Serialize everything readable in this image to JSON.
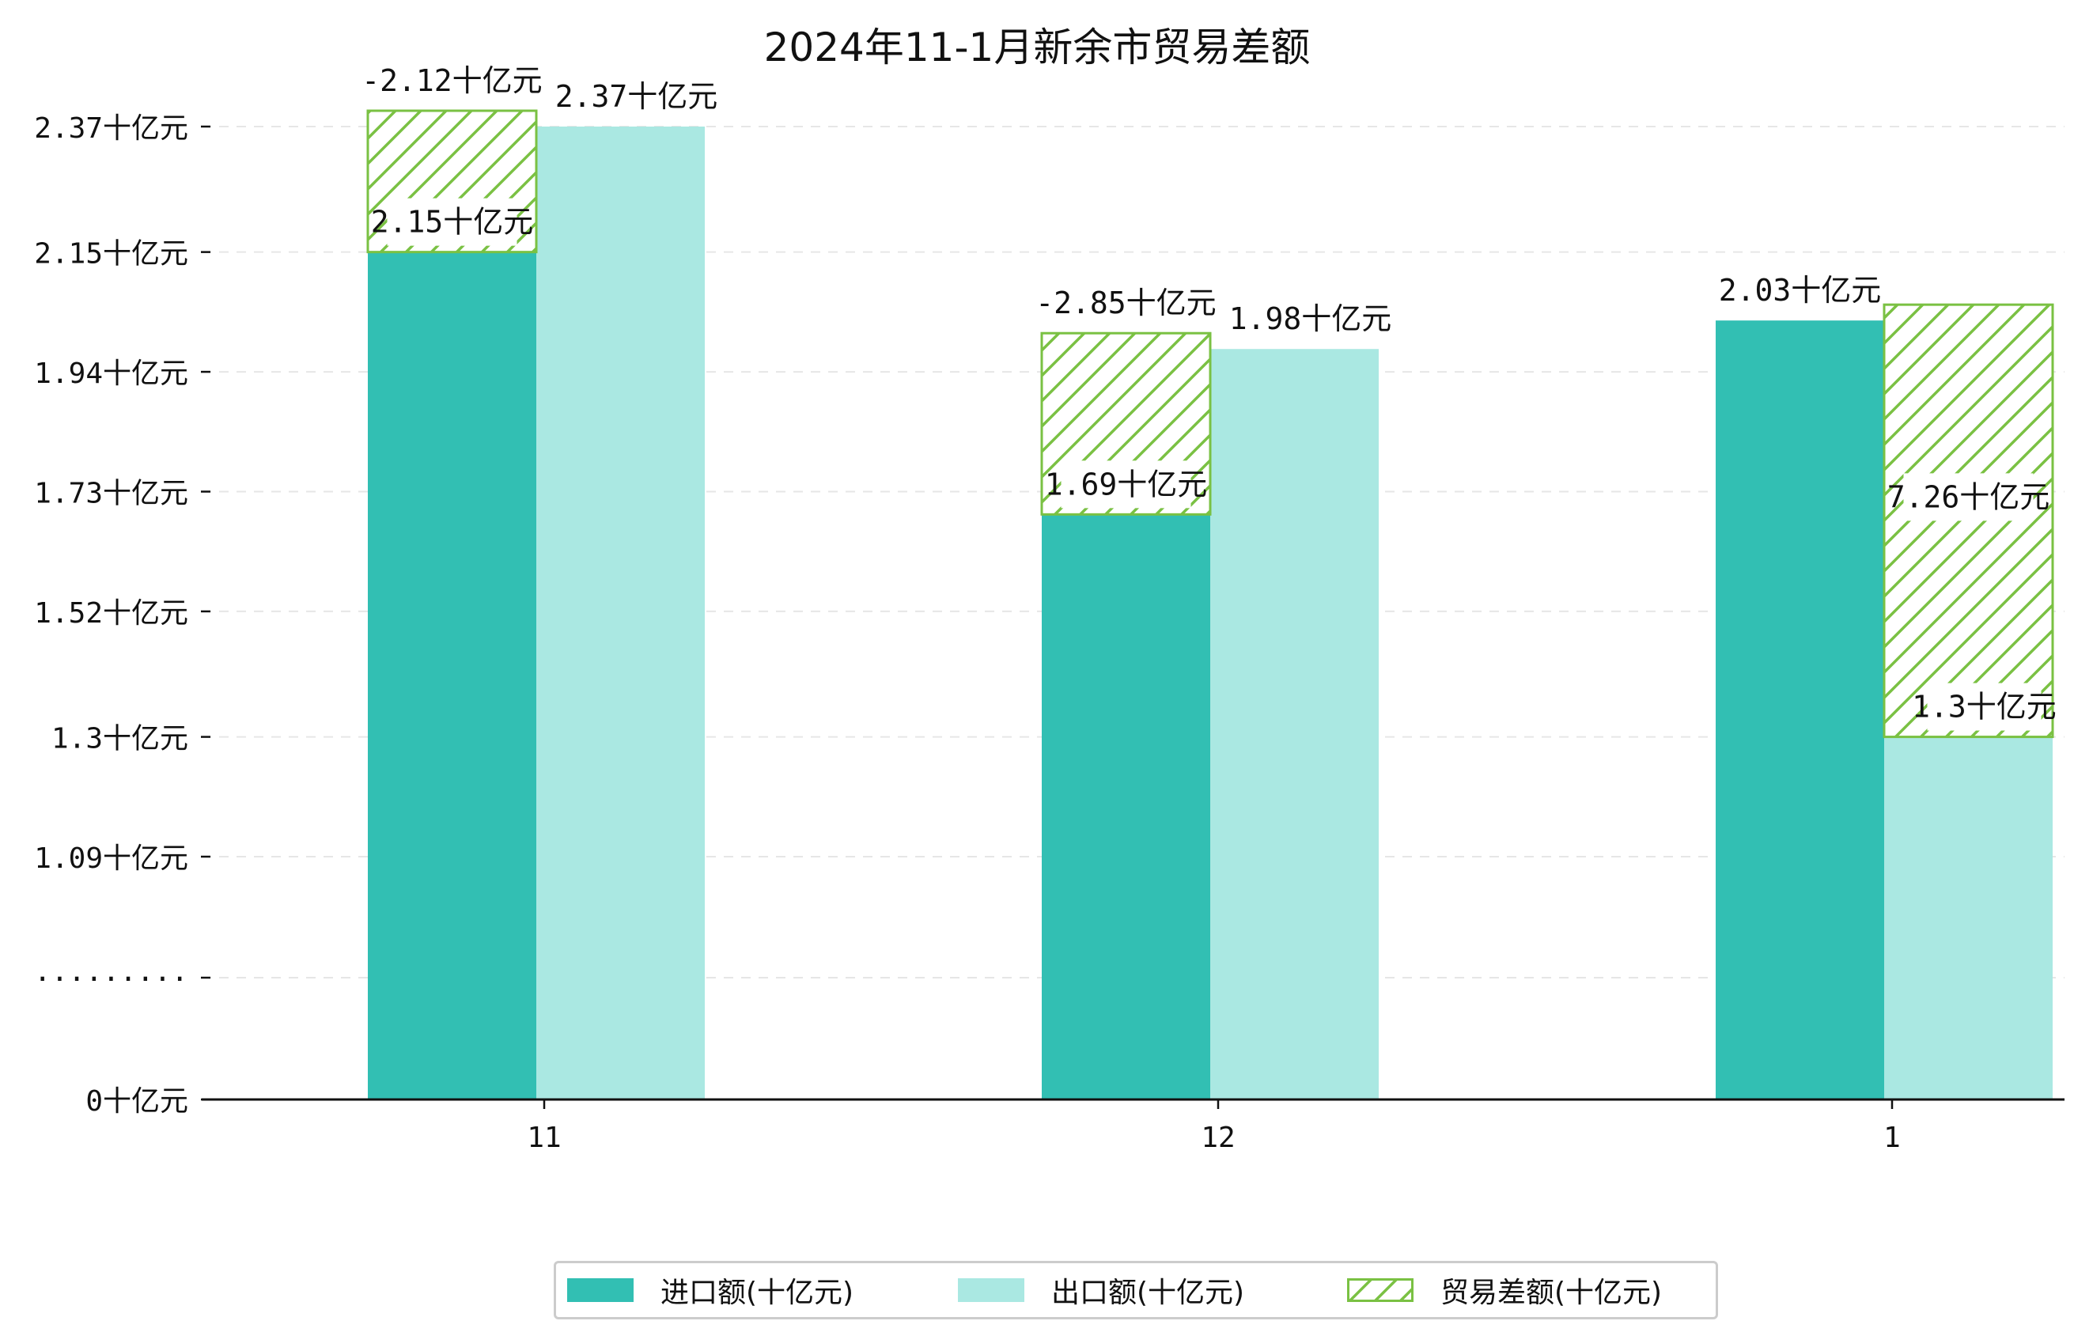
{
  "chart_data": {
    "type": "bar",
    "title": "2024年11-1月新余市贸易差额",
    "categories": [
      "11",
      "12",
      "1"
    ],
    "series": [
      {
        "name": "进口额(十亿元)",
        "values": [
          2.15,
          1.69,
          2.03
        ],
        "labels": [
          "2.15十亿元",
          "1.69十亿元",
          "2.03十亿元"
        ]
      },
      {
        "name": "出口额(十亿元)",
        "values": [
          2.37,
          1.98,
          1.3
        ],
        "labels": [
          "2.37十亿元",
          "1.98十亿元",
          "1.3十亿元"
        ]
      },
      {
        "name": "贸易差额(十亿元)",
        "values": [
          -2.12,
          -2.85,
          7.26
        ],
        "labels": [
          "-2.12十亿元",
          "-2.85十亿元",
          "7.26十亿元"
        ]
      }
    ],
    "y_ticks": [
      {
        "value": 0,
        "label": "0十亿元"
      },
      {
        "value": null,
        "label": "·········"
      },
      {
        "value": 1.09,
        "label": "1.09十亿元"
      },
      {
        "value": 1.3,
        "label": "1.3十亿元"
      },
      {
        "value": 1.52,
        "label": "1.52十亿元"
      },
      {
        "value": 1.73,
        "label": "1.73十亿元"
      },
      {
        "value": 1.94,
        "label": "1.94十亿元"
      },
      {
        "value": 2.15,
        "label": "2.15十亿元"
      },
      {
        "value": 2.37,
        "label": "2.37十亿元"
      }
    ],
    "y_axis_break": true,
    "grid": "y-dashed",
    "legend_position": "bottom-center",
    "colors": {
      "import": "#32bfb3",
      "export": "#aae8e2",
      "balance_hatch": "#7ac143"
    }
  }
}
